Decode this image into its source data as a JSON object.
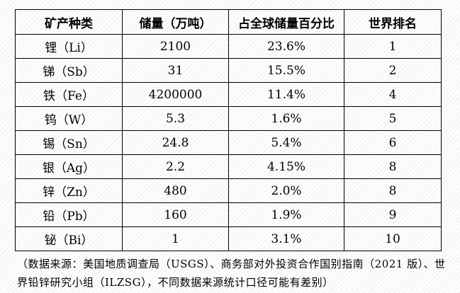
{
  "table": {
    "headers": [
      "矿产种类",
      "储量（万吨）",
      "占全球储量百分比",
      "世界排名"
    ],
    "rows": [
      [
        "锂（Li）",
        "2100",
        "23.6%",
        "1"
      ],
      [
        "锑（Sb）",
        "31",
        "15.5%",
        "2"
      ],
      [
        "铁（Fe）",
        "4200000",
        "11.4%",
        "4"
      ],
      [
        "钨（W）",
        "5.3",
        "1.6%",
        "5"
      ],
      [
        "锡（Sn）",
        "24.8",
        "5.4%",
        "6"
      ],
      [
        "银（Ag）",
        "2.2",
        "4.15%",
        "8"
      ],
      [
        "锌（Zn）",
        "480",
        "2.0%",
        "8"
      ],
      [
        "铅（Pb）",
        "160",
        "1.9%",
        "9"
      ],
      [
        "铋（Bi）",
        "1",
        "3.1%",
        "10"
      ]
    ]
  },
  "footnote": "（数据来源：美国地质调查局（USGS）、商务部对外投资合作国别指南（2021 版）、世界铅锌研究小组（ILZSG），不同数据来源统计口径可能有差别）",
  "colors": {
    "text": "#000000",
    "border": "#000000",
    "background": "#fdfdfd"
  }
}
